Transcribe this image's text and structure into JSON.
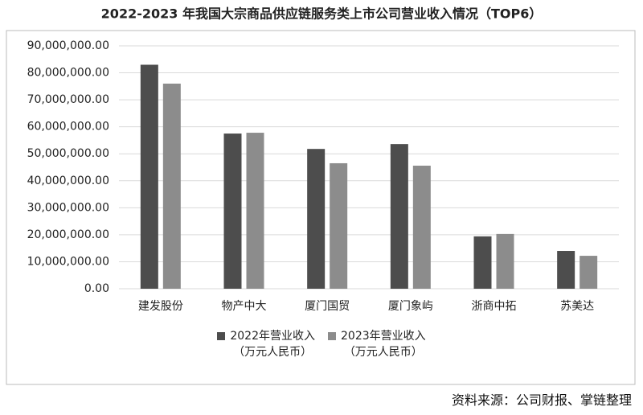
{
  "chart_data": {
    "type": "bar",
    "title": "2022-2023 年我国大宗商品供应链服务类上市公司营业收入情况（TOP6）",
    "categories": [
      "建发股份",
      "物产中大",
      "厦门国贸",
      "厦门象屿",
      "浙商中拓",
      "苏美达"
    ],
    "series": [
      {
        "name": "2022年营业收入\n（万元人民币）",
        "color": "#4d4d4d",
        "values": [
          83000000,
          57500000,
          51800000,
          53600000,
          19400000,
          14000000
        ]
      },
      {
        "name": "2023年营业收入\n（万元人民币）",
        "color": "#8c8c8c",
        "values": [
          76000000,
          57800000,
          46500000,
          45600000,
          20300000,
          12200000
        ]
      }
    ],
    "ylim": [
      0,
      90000000
    ],
    "yticks": [
      {
        "value": 0,
        "label": "0.00"
      },
      {
        "value": 10000000,
        "label": "10,000,000.00"
      },
      {
        "value": 20000000,
        "label": "20,000,000.00"
      },
      {
        "value": 30000000,
        "label": "30,000,000.00"
      },
      {
        "value": 40000000,
        "label": "40,000,000.00"
      },
      {
        "value": 50000000,
        "label": "50,000,000.00"
      },
      {
        "value": 60000000,
        "label": "60,000,000.00"
      },
      {
        "value": 70000000,
        "label": "70,000,000.00"
      },
      {
        "value": 80000000,
        "label": "80,000,000.00"
      },
      {
        "value": 90000000,
        "label": "90,000,000.00"
      }
    ],
    "grid": true,
    "source": "资料来源：公司财报、掌链整理"
  }
}
